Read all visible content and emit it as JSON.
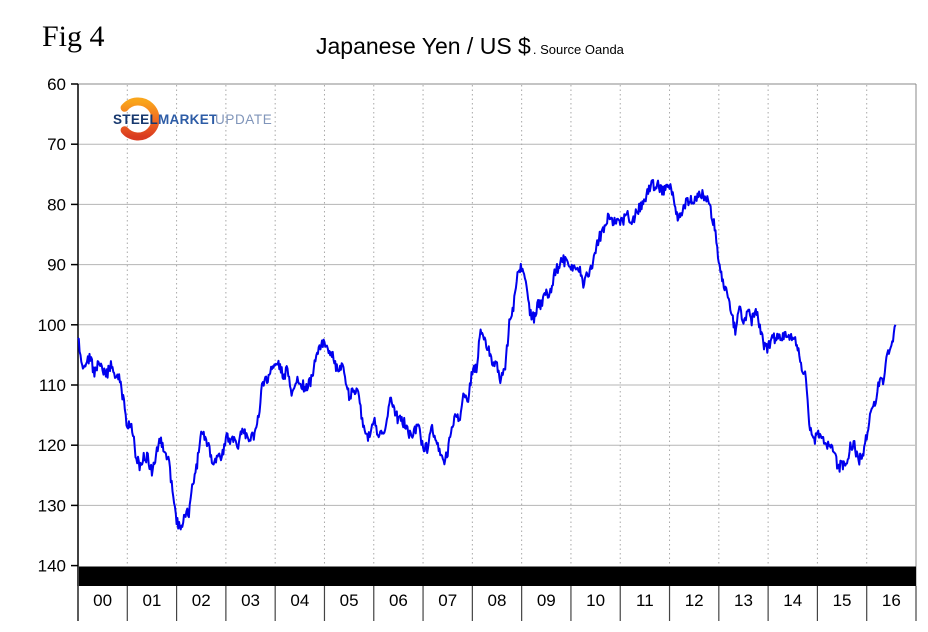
{
  "fig_label": "Fig 4",
  "logo": {
    "steel": "STEEL",
    "market": "MARKET",
    "update": "UPDATE"
  },
  "logo_colors": {
    "steel": "#17386e",
    "market": "#2d5ca6",
    "update": "#8095ba",
    "crescent_top": "#f9a51c",
    "crescent_mid": "#f26a21",
    "crescent_bottom": "#d93b20"
  },
  "chart_data": {
    "type": "line",
    "title": "Japanese Yen / US $",
    "source_note": ". Source Oanda",
    "x_tick_labels": [
      "00",
      "01",
      "02",
      "03",
      "04",
      "05",
      "06",
      "07",
      "08",
      "09",
      "10",
      "11",
      "12",
      "13",
      "14",
      "15",
      "16"
    ],
    "y_tick_labels": [
      "60",
      "70",
      "80",
      "90",
      "100",
      "110",
      "120",
      "130",
      "140"
    ],
    "y_ticks": [
      60,
      70,
      80,
      90,
      100,
      110,
      120,
      130,
      140
    ],
    "y_min": 60,
    "y_max": 140,
    "y_axis_inverted": true,
    "x_start_year": 2000,
    "x_end_year": 2017,
    "grid": {
      "horizontal": "solid",
      "vertical": "dotted"
    },
    "colors": {
      "line": "#0000ee",
      "h_grid": "#b5b5b5",
      "v_grid": "#a8a8a8",
      "frame": "#888888",
      "axis": "#000000",
      "baseline_bar": "#000000"
    },
    "series": [
      {
        "name": "Japanese Yen per US Dollar",
        "color": "#0000ee",
        "start": "2000-01",
        "step_months": 1,
        "values": [
          102.2,
          106.5,
          106.0,
          105.4,
          108.2,
          106.1,
          108.0,
          108.2,
          106.7,
          108.4,
          109.0,
          112.2,
          117.0,
          116.1,
          121.3,
          123.8,
          121.6,
          122.2,
          124.6,
          121.4,
          118.9,
          121.3,
          122.3,
          127.6,
          132.6,
          134.2,
          131.0,
          131.2,
          126.4,
          123.2,
          118.0,
          119.0,
          120.9,
          123.9,
          121.5,
          122.2,
          118.7,
          119.3,
          118.6,
          119.9,
          117.2,
          118.3,
          118.7,
          118.6,
          114.8,
          109.5,
          109.2,
          107.8,
          106.3,
          106.6,
          108.6,
          107.4,
          112.3,
          109.4,
          109.5,
          110.2,
          110.1,
          108.8,
          104.8,
          103.8,
          102.5,
          104.9,
          105.3,
          107.2,
          106.6,
          108.7,
          111.9,
          110.6,
          111.2,
          114.8,
          118.5,
          118.4,
          115.4,
          117.9,
          117.3,
          117.1,
          111.8,
          114.6,
          115.7,
          115.9,
          117.0,
          118.6,
          117.3,
          117.2,
          120.4,
          120.5,
          117.2,
          118.8,
          120.7,
          122.6,
          121.6,
          116.7,
          115.0,
          115.8,
          111.2,
          112.3,
          107.7,
          107.2,
          100.8,
          102.5,
          104.1,
          106.9,
          106.8,
          109.3,
          106.6,
          100.0,
          96.9,
          91.3,
          90.4,
          92.5,
          97.8,
          98.9,
          96.4,
          96.6,
          94.5,
          94.9,
          91.4,
          90.3,
          89.2,
          89.9,
          91.1,
          90.2,
          90.6,
          93.4,
          91.8,
          90.9,
          87.7,
          85.4,
          84.4,
          81.8,
          82.5,
          83.4,
          82.6,
          82.5,
          81.7,
          83.3,
          81.2,
          80.5,
          79.4,
          77.1,
          76.8,
          76.7,
          77.5,
          77.8,
          76.9,
          78.5,
          82.4,
          81.4,
          79.7,
          79.3,
          79.0,
          78.7,
          78.2,
          78.9,
          80.9,
          83.7,
          89.1,
          93.1,
          94.8,
          97.7,
          100.9,
          97.3,
          99.7,
          97.8,
          99.2,
          97.8,
          100.1,
          103.4,
          103.9,
          102.1,
          102.3,
          102.5,
          101.8,
          102.1,
          101.7,
          102.9,
          107.2,
          108.0,
          116.2,
          119.4,
          118.3,
          118.8,
          120.4,
          119.6,
          121.0,
          123.7,
          123.3,
          123.2,
          120.1,
          120.0,
          122.6,
          121.8,
          118.2,
          115.0,
          113.0,
          109.7,
          109.2,
          105.4,
          103.3,
          100.0
        ]
      }
    ]
  }
}
